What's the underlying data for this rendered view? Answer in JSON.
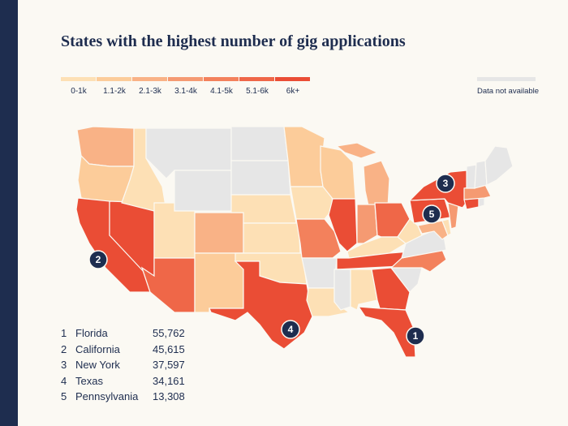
{
  "title": "States with the highest number of gig applications",
  "legend": {
    "bins": [
      {
        "label": "0-1k",
        "color": "#fde0b5"
      },
      {
        "label": "1.1-2k",
        "color": "#fccc9a"
      },
      {
        "label": "2.1-3k",
        "color": "#f9b286"
      },
      {
        "label": "3.1-4k",
        "color": "#f59a72"
      },
      {
        "label": "4.1-5k",
        "color": "#f3815c"
      },
      {
        "label": "5.1-6k",
        "color": "#ef6748"
      },
      {
        "label": "6k+",
        "color": "#ea4d35"
      }
    ],
    "na_label": "Data not available",
    "na_color": "#e6e6e6"
  },
  "ranking": [
    {
      "rank": "1",
      "state": "Florida",
      "value": "55,762"
    },
    {
      "rank": "2",
      "state": "California",
      "value": "45,615"
    },
    {
      "rank": "3",
      "state": "New York",
      "value": "37,597"
    },
    {
      "rank": "4",
      "state": "Texas",
      "value": "34,161"
    },
    {
      "rank": "5",
      "state": "Pennsylvania",
      "value": "13,308"
    }
  ],
  "markers": [
    "1",
    "2",
    "3",
    "4",
    "5"
  ],
  "state_bins": {
    "WA": 2,
    "OR": 1,
    "CA": 6,
    "NV": 6,
    "ID": 0,
    "MT": "na",
    "WY": "na",
    "UT": 0,
    "AZ": 5,
    "CO": 2,
    "NM": 1,
    "ND": "na",
    "SD": "na",
    "NE": 0,
    "KS": 0,
    "OK": 0,
    "TX": 6,
    "MN": 1,
    "IA": 0,
    "MO": 4,
    "AR": "na",
    "LA": 0,
    "WI": 1,
    "IL": 6,
    "MS": "na",
    "MI": 2,
    "IN": 3,
    "KY": 0,
    "TN": 6,
    "AL": 0,
    "OH": 5,
    "GA": 6,
    "FL": 6,
    "SC": "na",
    "NC": 4,
    "VA": "na",
    "WV": 0,
    "PA": 6,
    "NY": 6,
    "VT": "na",
    "NH": "na",
    "ME": "na",
    "MA": 3,
    "CT": 6,
    "RI": "na",
    "NJ": 3,
    "DE": 0,
    "MD": 2
  }
}
